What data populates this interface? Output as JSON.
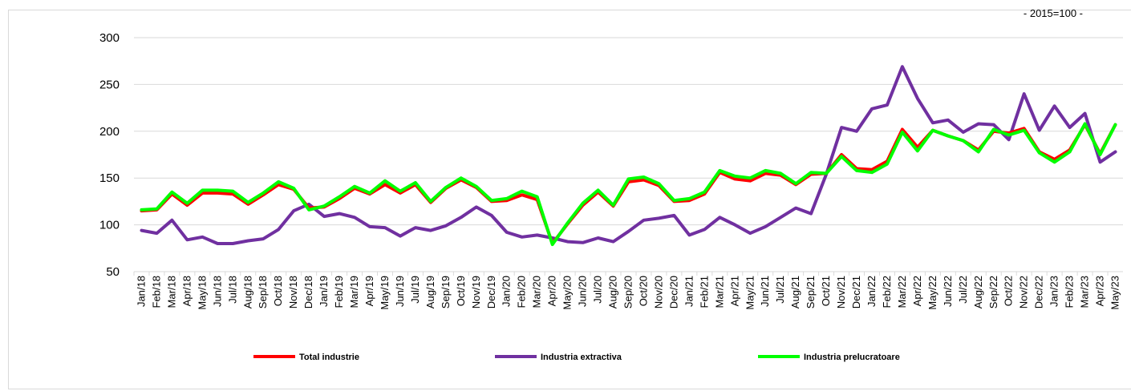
{
  "base_note": "- 2015=100 -",
  "chart_data": {
    "type": "line",
    "title": "",
    "xlabel": "",
    "ylabel": "",
    "ylim": [
      50,
      300
    ],
    "yticks": [
      50,
      100,
      150,
      200,
      250,
      300
    ],
    "grid": "horizontal",
    "legend_position": "bottom",
    "categories": [
      "Jan/18",
      "Feb/18",
      "Mar/18",
      "Apr/18",
      "May/18",
      "Jun/18",
      "Jul/18",
      "Aug/18",
      "Sep/18",
      "Oct/18",
      "Nov/18",
      "Dec/18",
      "Jan/19",
      "Feb/19",
      "Mar/19",
      "Apr/19",
      "May/19",
      "Jun/19",
      "Jul/19",
      "Aug/19",
      "Sep/19",
      "Oct/19",
      "Nov/19",
      "Dec/19",
      "Jan/20",
      "Feb/20",
      "Mar/20",
      "Apr/20",
      "May/20",
      "Jun/20",
      "Jul/20",
      "Aug/20",
      "Sep/20",
      "Oct/20",
      "Nov/20",
      "Dec/20",
      "Jan/21",
      "Feb/21",
      "Mar/21",
      "Apr/21",
      "May/21",
      "Jun/21",
      "Jul/21",
      "Aug/21",
      "Sep/21",
      "Oct/21",
      "Nov/21",
      "Dec/21",
      "Jan/22",
      "Feb/22",
      "Mar/22",
      "Apr/22",
      "May/22",
      "Jun/22",
      "Jul/22",
      "Aug/22",
      "Sep/22",
      "Oct/22",
      "Nov/22",
      "Dec/22",
      "Jan/23",
      "Feb/23",
      "Mar/23",
      "Apr/23",
      "May/23"
    ],
    "series": [
      {
        "name": "Total industrie",
        "color": "#ff0000",
        "values": [
          115,
          116,
          133,
          121,
          134,
          134,
          133,
          122,
          132,
          143,
          138,
          118,
          119,
          128,
          139,
          133,
          143,
          134,
          143,
          124,
          139,
          148,
          140,
          125,
          126,
          132,
          127,
          80,
          101,
          121,
          135,
          120,
          146,
          148,
          142,
          125,
          126,
          133,
          156,
          149,
          147,
          155,
          153,
          143,
          154,
          155,
          175,
          160,
          159,
          168,
          202,
          183,
          201,
          195,
          190,
          180,
          200,
          198,
          203,
          178,
          170,
          180,
          207,
          176,
          207
        ]
      },
      {
        "name": "Industria extractiva",
        "color": "#7030a0",
        "values": [
          94,
          91,
          105,
          84,
          87,
          80,
          80,
          83,
          85,
          95,
          115,
          122,
          109,
          112,
          108,
          98,
          97,
          88,
          97,
          94,
          99,
          108,
          119,
          110,
          92,
          87,
          89,
          86,
          82,
          81,
          86,
          82,
          93,
          105,
          107,
          110,
          89,
          95,
          108,
          100,
          91,
          98,
          108,
          118,
          112,
          154,
          204,
          200,
          224,
          228,
          269,
          235,
          209,
          212,
          199,
          208,
          207,
          191,
          240,
          201,
          227,
          204,
          219,
          167,
          178
        ]
      },
      {
        "name": "Industria prelucratoare",
        "color": "#00ff00",
        "values": [
          116,
          117,
          135,
          123,
          137,
          137,
          136,
          124,
          134,
          146,
          139,
          116,
          120,
          130,
          141,
          134,
          147,
          136,
          145,
          125,
          140,
          150,
          141,
          126,
          128,
          136,
          130,
          79,
          102,
          123,
          137,
          121,
          149,
          151,
          144,
          126,
          128,
          135,
          158,
          152,
          150,
          158,
          155,
          144,
          156,
          155,
          173,
          158,
          156,
          165,
          199,
          179,
          201,
          195,
          190,
          178,
          202,
          196,
          201,
          177,
          167,
          178,
          208,
          175,
          207
        ]
      }
    ]
  }
}
